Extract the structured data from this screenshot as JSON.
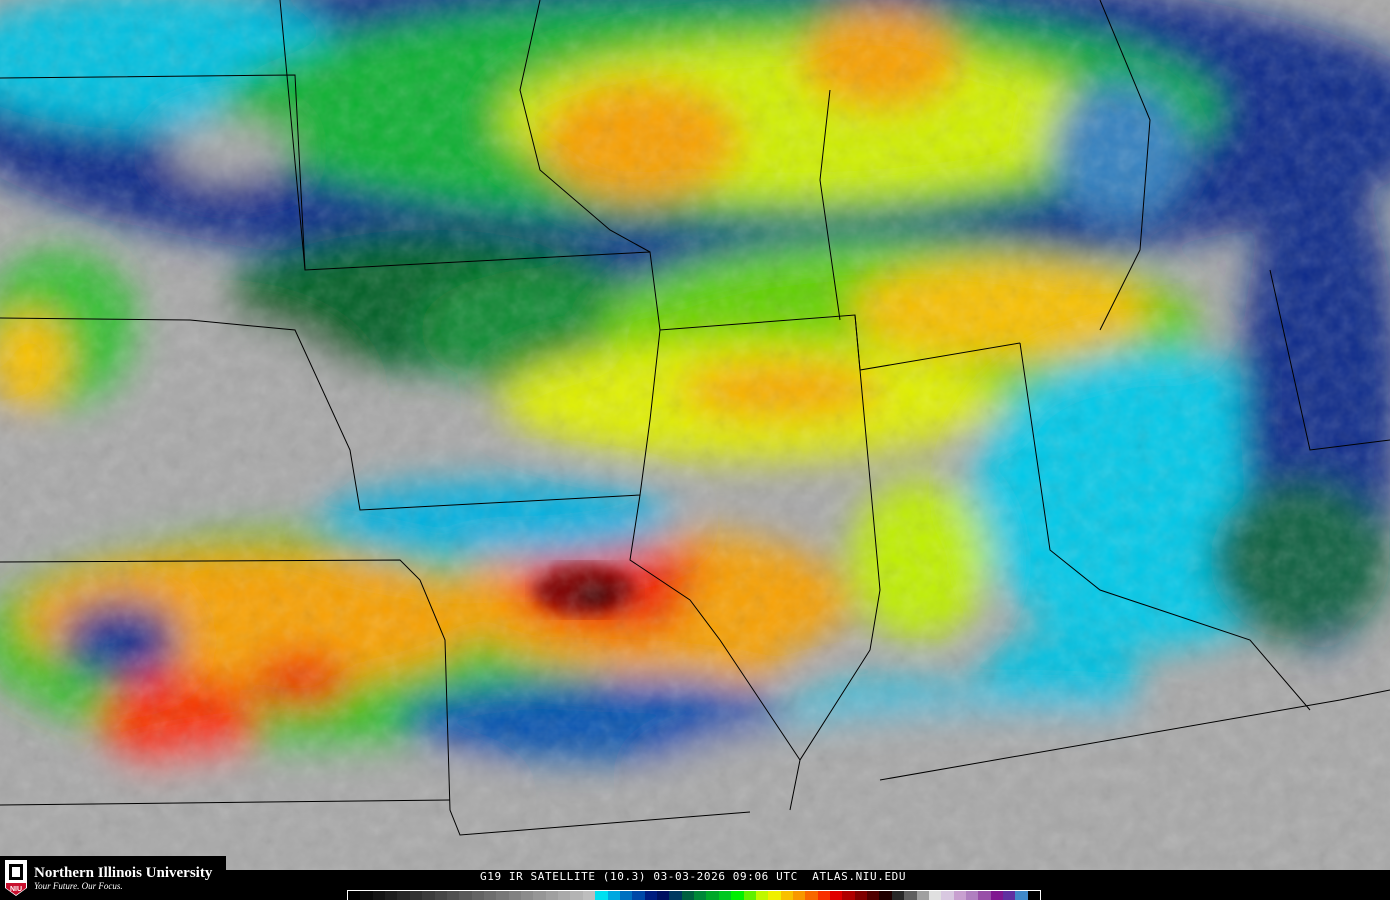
{
  "logo": {
    "name": "Northern Illinois University",
    "tagline": "Your Future. Our Focus.",
    "badge": "NIU",
    "brand_color": "#c8102e"
  },
  "caption": "G19 IR SATELLITE (10.3) 03-03-2026 09:06 UTC  ATLAS.NIU.EDU",
  "colorbar": {
    "colors": [
      "#000000",
      "#0a0a0a",
      "#141414",
      "#1e1e1e",
      "#282828",
      "#323232",
      "#3c3c3c",
      "#464646",
      "#505050",
      "#5a5a5a",
      "#646464",
      "#6e6e6e",
      "#787878",
      "#828282",
      "#8c8c8c",
      "#969696",
      "#a0a0a0",
      "#aaaaaa",
      "#b4b4b4",
      "#bebebe",
      "#00e0f0",
      "#00a8e0",
      "#0070c0",
      "#0048a8",
      "#001c80",
      "#001060",
      "#003860",
      "#006040",
      "#008838",
      "#00a828",
      "#00c820",
      "#00f000",
      "#60f000",
      "#c0f800",
      "#f0f000",
      "#f8c000",
      "#f89800",
      "#f86800",
      "#f83000",
      "#e00000",
      "#b00000",
      "#800000",
      "#500000",
      "#200000",
      "#282828",
      "#606060",
      "#a0a0a0",
      "#e0e0e0",
      "#d8c8e0",
      "#c8a0d0",
      "#b080c0",
      "#9850a8",
      "#801890",
      "#6030a0",
      "#4088c8",
      "#000000"
    ]
  },
  "map": {
    "background_color": "#a8a8a8",
    "region": "Midwest United States"
  }
}
